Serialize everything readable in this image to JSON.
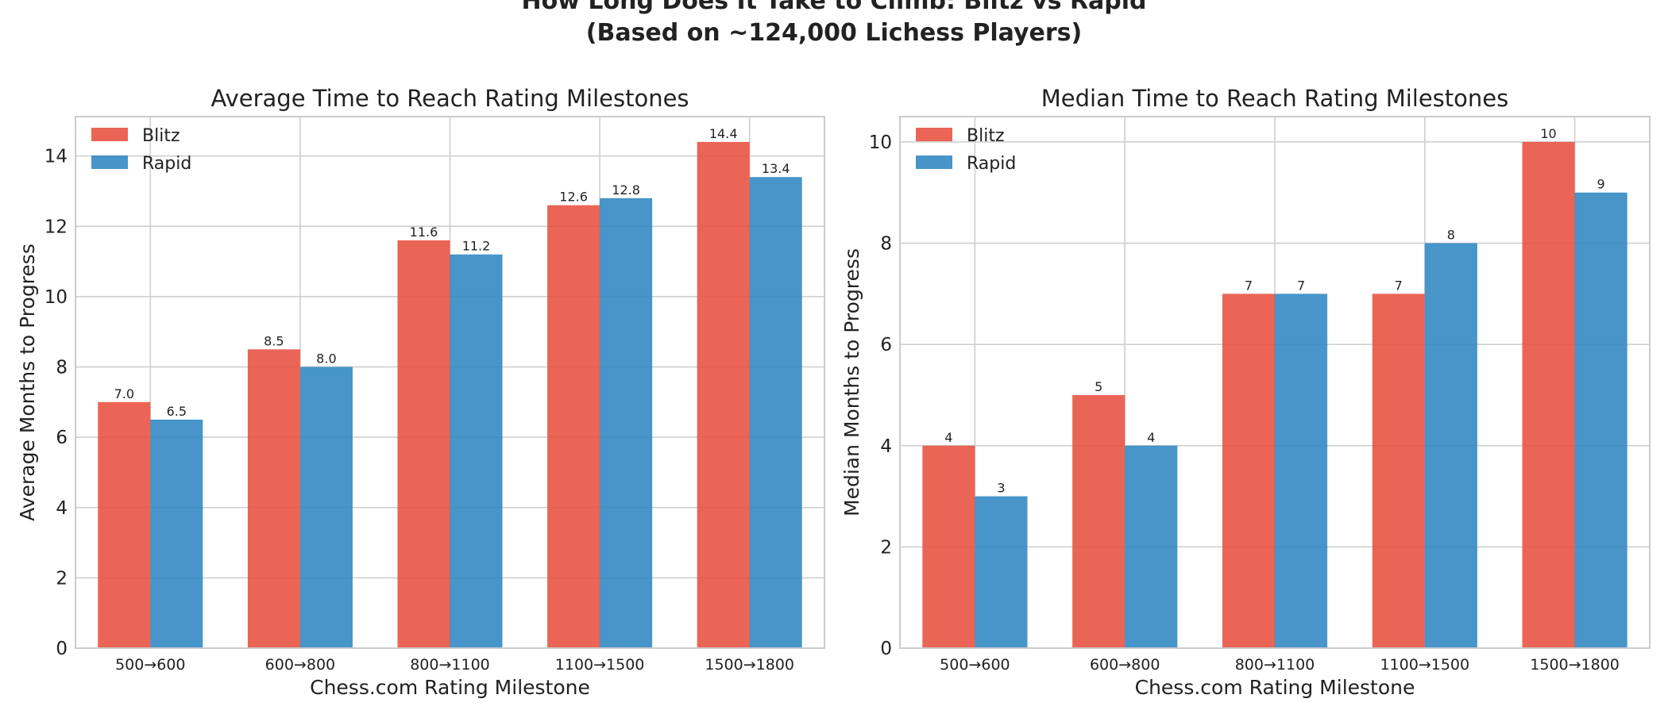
{
  "suptitle": {
    "line1": "How Long Does It Take to Climb: Blitz vs Rapid",
    "line2": "(Based on ~124,000 Lichess Players)"
  },
  "colors": {
    "Blitz": "#e8503f",
    "Rapid": "#2e86c1"
  },
  "chart_data": [
    {
      "type": "bar",
      "title": "Average Time to Reach Rating Milestones",
      "xlabel": "Chess.com Rating Milestone",
      "ylabel": "Average Months to Progress",
      "categories": [
        "500→600",
        "600→800",
        "800→1100",
        "1100→1500",
        "1500→1800"
      ],
      "series": [
        {
          "name": "Blitz",
          "values": [
            7.0,
            8.5,
            11.6,
            12.6,
            14.4
          ],
          "labels": [
            "7.0",
            "8.5",
            "11.6",
            "12.6",
            "14.4"
          ]
        },
        {
          "name": "Rapid",
          "values": [
            6.5,
            8.0,
            11.2,
            12.8,
            13.4
          ],
          "labels": [
            "6.5",
            "8.0",
            "11.2",
            "12.8",
            "13.4"
          ]
        }
      ],
      "ylim": [
        0,
        15.12
      ],
      "yticks": [
        0,
        2,
        4,
        6,
        8,
        10,
        12,
        14
      ],
      "grid": true,
      "legend": "top-left"
    },
    {
      "type": "bar",
      "title": "Median Time to Reach Rating Milestones",
      "xlabel": "Chess.com Rating Milestone",
      "ylabel": "Median Months to Progress",
      "categories": [
        "500→600",
        "600→800",
        "800→1100",
        "1100→1500",
        "1500→1800"
      ],
      "series": [
        {
          "name": "Blitz",
          "values": [
            4,
            5,
            7,
            7,
            10
          ],
          "labels": [
            "4",
            "5",
            "7",
            "7",
            "10"
          ]
        },
        {
          "name": "Rapid",
          "values": [
            3,
            4,
            7,
            8,
            9
          ],
          "labels": [
            "3",
            "4",
            "7",
            "8",
            "9"
          ]
        }
      ],
      "ylim": [
        0,
        10.5
      ],
      "yticks": [
        0,
        2,
        4,
        6,
        8,
        10
      ],
      "grid": true,
      "legend": "top-left"
    }
  ]
}
